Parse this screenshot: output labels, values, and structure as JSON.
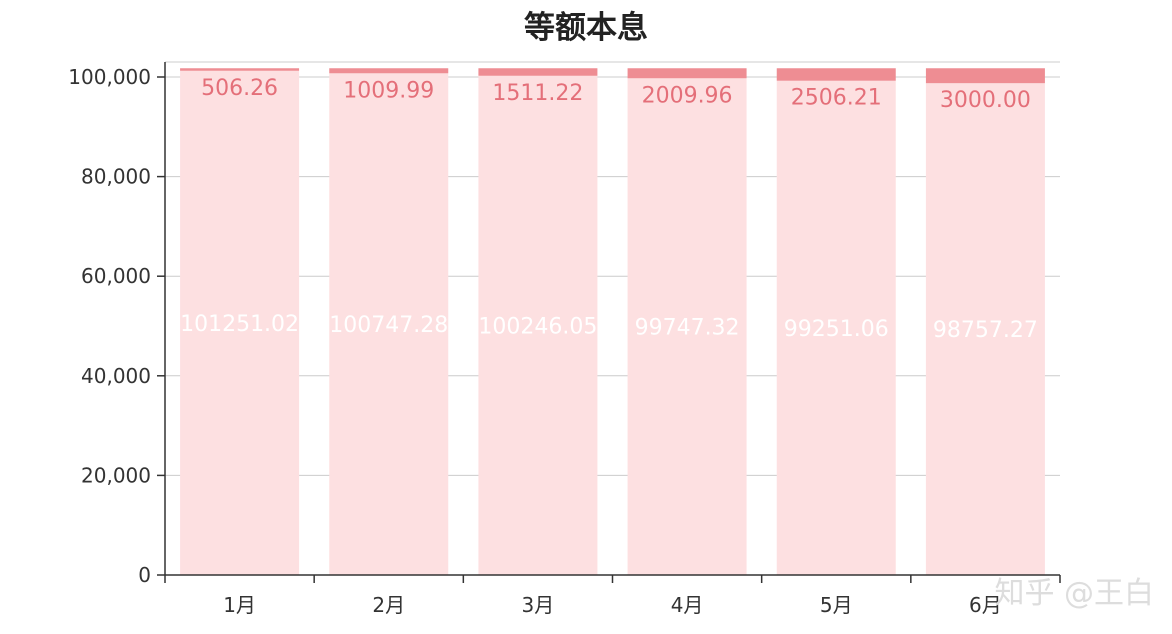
{
  "chart_data": {
    "type": "bar",
    "stacked": true,
    "title": "等额本息",
    "xlabel": "",
    "ylabel": "",
    "categories": [
      "1月",
      "2月",
      "3月",
      "4月",
      "5月",
      "6月"
    ],
    "series": [
      {
        "color": "#fde0e1",
        "label_color": "#ffffff",
        "values": [
          101251.02,
          100747.28,
          100246.05,
          99747.32,
          99251.06,
          98757.27
        ],
        "labels": [
          "101251.02",
          "100747.28",
          "100246.05",
          "99747.32",
          "99251.06",
          "98757.27"
        ]
      },
      {
        "color": "#ee8d93",
        "label_color": "#e46f79",
        "values": [
          506.26,
          1009.99,
          1511.22,
          2009.96,
          2506.21,
          3000.0
        ],
        "labels": [
          "506.26",
          "1009.99",
          "1511.22",
          "2009.96",
          "2506.21",
          "3000.00"
        ]
      }
    ],
    "ylim": [
      0,
      100000
    ],
    "yticks": [
      "0",
      "20,000",
      "40,000",
      "60,000",
      "80,000",
      "100,000"
    ],
    "ytick_values": [
      0,
      20000,
      40000,
      60000,
      80000,
      100000
    ],
    "grid": true,
    "legend": "none"
  },
  "watermark": "知乎 @王白"
}
